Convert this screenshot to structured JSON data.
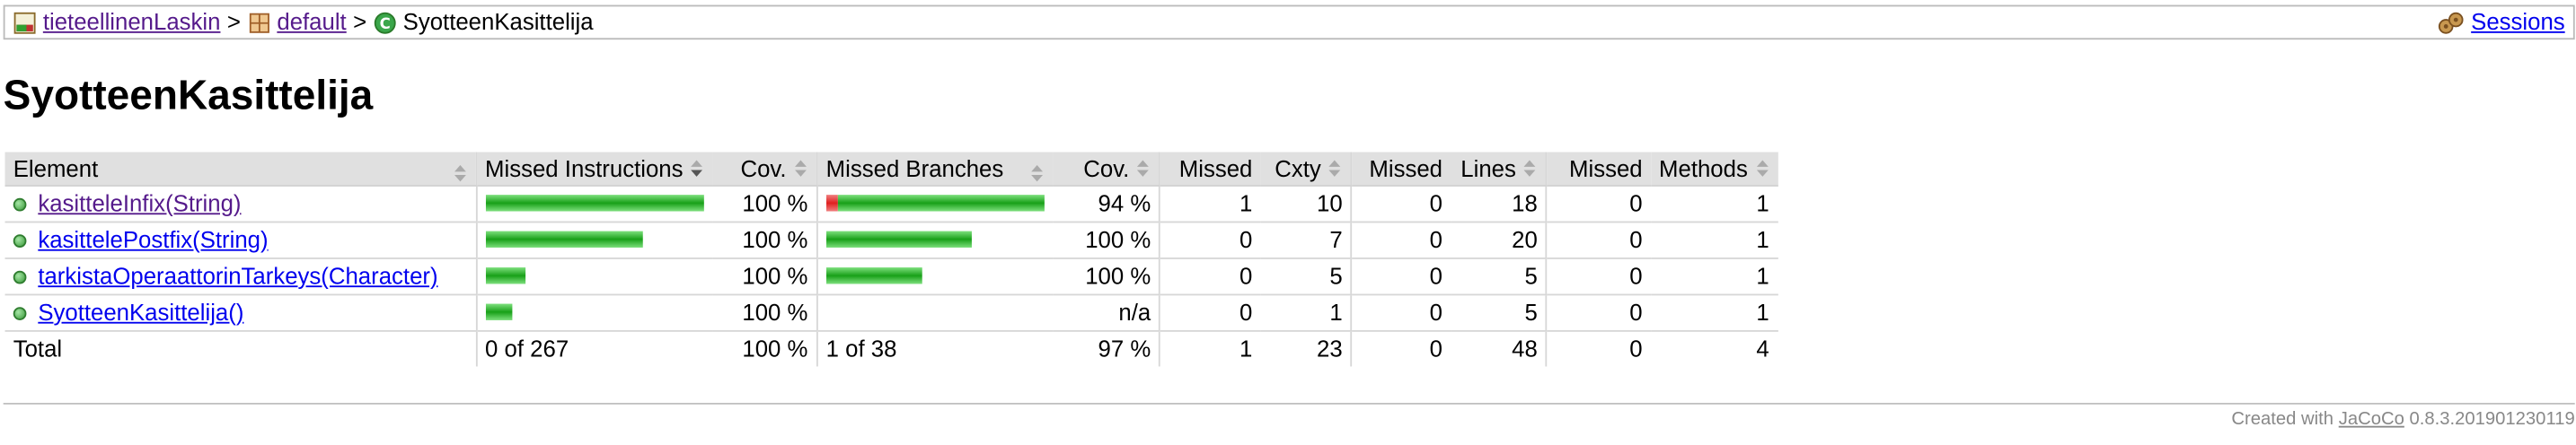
{
  "breadcrumb": {
    "project": "tieteellinenLaskin",
    "separator": ">",
    "package": "default",
    "current": "SyotteenKasittelija"
  },
  "sessions_label": "Sessions",
  "page_title": "SyotteenKasittelija",
  "table": {
    "headers": [
      "Element",
      "Missed Instructions",
      "Cov.",
      "Missed Branches",
      "Cov.",
      "Missed",
      "Cxty",
      "Missed",
      "Lines",
      "Missed",
      "Methods"
    ],
    "rows": [
      {
        "name": "kasitteleInfix(String)",
        "visited": true,
        "instr_missed_fraction": 0,
        "instr_covered_fraction": 1.0,
        "instr_cov": "100 %",
        "br_missed_fraction": 0.05,
        "br_covered_fraction": 0.95,
        "br_cov": "94 %",
        "cxty_missed": "1",
        "cxty": "10",
        "lines_missed": "0",
        "lines": "18",
        "methods_missed": "0",
        "methods": "1"
      },
      {
        "name": "kasittelePostfix(String)",
        "visited": false,
        "instr_missed_fraction": 0,
        "instr_covered_fraction": 0.72,
        "instr_cov": "100 %",
        "br_missed_fraction": 0,
        "br_covered_fraction": 0.67,
        "br_cov": "100 %",
        "cxty_missed": "0",
        "cxty": "7",
        "lines_missed": "0",
        "lines": "20",
        "methods_missed": "0",
        "methods": "1"
      },
      {
        "name": "tarkistaOperaattorinTarkeys(Character)",
        "visited": false,
        "instr_missed_fraction": 0,
        "instr_covered_fraction": 0.18,
        "instr_cov": "100 %",
        "br_missed_fraction": 0,
        "br_covered_fraction": 0.44,
        "br_cov": "100 %",
        "cxty_missed": "0",
        "cxty": "5",
        "lines_missed": "0",
        "lines": "5",
        "methods_missed": "0",
        "methods": "1"
      },
      {
        "name": "SyotteenKasittelija()",
        "visited": false,
        "instr_missed_fraction": 0,
        "instr_covered_fraction": 0.12,
        "instr_cov": "100 %",
        "br_missed_fraction": 0,
        "br_covered_fraction": 0,
        "br_cov": "n/a",
        "cxty_missed": "0",
        "cxty": "1",
        "lines_missed": "0",
        "lines": "5",
        "methods_missed": "0",
        "methods": "1"
      }
    ],
    "total": {
      "label": "Total",
      "instr": "0 of 267",
      "instr_cov": "100 %",
      "br": "1 of 38",
      "br_cov": "97 %",
      "cxty_missed": "1",
      "cxty": "23",
      "lines_missed": "0",
      "lines": "48",
      "methods_missed": "0",
      "methods": "4"
    }
  },
  "footer": {
    "prefix": "Created with",
    "link": "JaCoCo",
    "version": "0.8.3.201901230119"
  },
  "colors": {
    "covered": "#18a018",
    "missed": "#e02020",
    "header_bg": "#e0e0e0"
  }
}
